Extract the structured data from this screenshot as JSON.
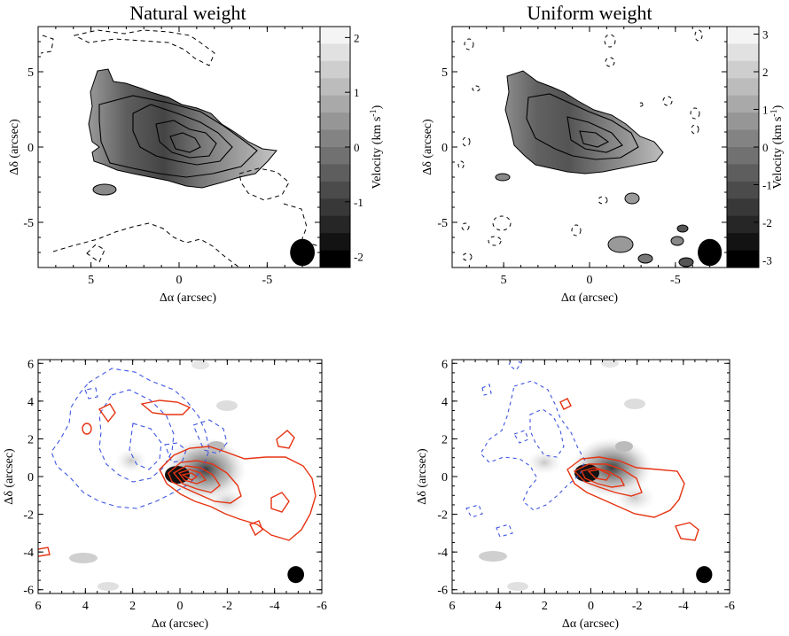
{
  "chart_data": [
    {
      "type": "heatmap",
      "title": "Natural weight",
      "xlabel": "Δα (arcsec)",
      "ylabel": "Δδ (arcsec)",
      "xlim": [
        8,
        -8
      ],
      "ylim": [
        -8,
        8
      ],
      "xticks": [
        5,
        0,
        -5
      ],
      "yticks": [
        5,
        0,
        -5
      ],
      "colorbar": {
        "label": "Velocity (km s-1)",
        "range": [
          -2.2,
          2.2
        ],
        "ticks": [
          2,
          1,
          0,
          -1,
          -2
        ]
      },
      "blob_color_ramp": [
        "#9a9a9a",
        "#5e5e5e",
        "#444444",
        "#777777",
        "#9e9e9e",
        "#c4c4c4"
      ],
      "blob_center": [
        0,
        0
      ],
      "beam": {
        "x": -7.0,
        "y": -7.0,
        "rx": 0.7,
        "ry": 0.9
      },
      "contours_solid": 4,
      "contours_dashed": true
    },
    {
      "type": "heatmap",
      "title": "Uniform weight",
      "xlabel": "Δα (arcsec)",
      "ylabel": "Δδ (arcsec)",
      "xlim": [
        8,
        -8
      ],
      "ylim": [
        -8,
        8
      ],
      "xticks": [
        5,
        0,
        -5
      ],
      "yticks": [
        5,
        0,
        -5
      ],
      "colorbar": {
        "label": "Velocity (km s-1)",
        "range": [
          -3.2,
          3.2
        ],
        "ticks": [
          3,
          2,
          1,
          0,
          -1,
          -2,
          -3
        ]
      },
      "blob_color_ramp": [
        "#8c8c8c",
        "#616161",
        "#545454",
        "#777777",
        "#9a9a9a",
        "#bdbdbd"
      ],
      "blob_center": [
        0,
        0
      ],
      "beam": {
        "x": -7.0,
        "y": -7.0,
        "rx": 0.7,
        "ry": 0.9
      },
      "contours_solid": 3,
      "contours_dashed": true
    },
    {
      "type": "heatmap",
      "title": "",
      "xlabel": "Δα (arcsec)",
      "ylabel": "Δδ (arcsec)",
      "xlim": [
        6,
        -6
      ],
      "ylim": [
        -6.2,
        6.2
      ],
      "xticks": [
        6,
        4,
        2,
        0,
        -2,
        -4,
        -6
      ],
      "yticks": [
        6,
        4,
        2,
        0,
        -2,
        -4,
        -6
      ],
      "red_contours": "solid",
      "blue_contours": "dashed",
      "beam": {
        "x": -4.9,
        "y": -5.2,
        "rx": 0.35,
        "ry": 0.45
      }
    },
    {
      "type": "heatmap",
      "title": "",
      "xlabel": "Δα (arcsec)",
      "ylabel": "Δδ (arcsec)",
      "xlim": [
        6,
        -6
      ],
      "ylim": [
        -6.2,
        6.2
      ],
      "xticks": [
        6,
        4,
        2,
        0,
        -2,
        -4,
        -6
      ],
      "yticks": [
        6,
        4,
        2,
        0,
        -2,
        -4,
        -6
      ],
      "red_contours": "solid",
      "blue_contours": "dashed",
      "beam": {
        "x": -4.9,
        "y": -5.2,
        "rx": 0.35,
        "ry": 0.45
      }
    }
  ],
  "colors": {
    "red": "#e63312",
    "blue": "#3f56e0",
    "ink": "#000000"
  }
}
